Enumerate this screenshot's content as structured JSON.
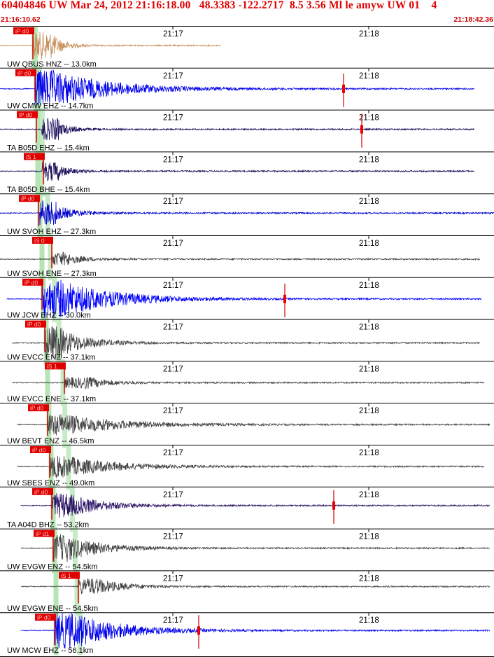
{
  "header": {
    "title": "60404846 UW Mar 24, 2012 21:16:18.00   48.3383 -122.2717  8.5 3.56 Ml le amyw UW 01    4",
    "start_time": "21:16:10.62",
    "end_time": "21:18:42.36"
  },
  "chart_data": {
    "type": "line",
    "title": "60404846 UW Mar 24, 2012 21:16:18.00   48.3383 -122.2717  8.5 3.56 Ml le amyw UW 01    4",
    "time_range": [
      "21:16:10.62",
      "21:18:42.36"
    ],
    "minute_ticks": [
      "21:17",
      "21:18"
    ],
    "grid": false,
    "traces": [
      {
        "label": "UW QBUS HNZ -- 13.0km",
        "pick": "iP d0",
        "color": "#c8905a",
        "has_s": false
      },
      {
        "label": "UW CMW EHZ -- 14.7km",
        "pick": "iP d0",
        "color": "#0000ee",
        "has_s": false
      },
      {
        "label": "TA B05D EHZ -- 15.4km",
        "pick": "iP d0",
        "color": "#1a0a5a",
        "has_s": false
      },
      {
        "label": "TA B05D BHE -- 15.4km",
        "pick": "iS 1",
        "color": "#1a0a5a",
        "has_s": true
      },
      {
        "label": "UW SVOH EHZ -- 27.3km",
        "pick": "iP d0",
        "color": "#0000cc",
        "has_s": false
      },
      {
        "label": "UW SVOH ENE -- 27.3km",
        "pick": "iS 0",
        "color": "#444444",
        "has_s": true
      },
      {
        "label": "UW JCW EHZ -- 30.0km",
        "pick": "iP d0",
        "color": "#0000ff",
        "has_s": false
      },
      {
        "label": "UW EVCC ENZ -- 37.1km",
        "pick": "iP d0",
        "color": "#444444",
        "has_s": false
      },
      {
        "label": "UW EVCC ENE -- 37.1km",
        "pick": "iS 1",
        "color": "#444444",
        "has_s": true
      },
      {
        "label": "UW BEVT ENZ -- 46.5km",
        "pick": "iP d0",
        "color": "#444444",
        "has_s": false
      },
      {
        "label": "UW SBES ENZ -- 49.0km",
        "pick": "iP d0",
        "color": "#444444",
        "has_s": false
      },
      {
        "label": "TA A04D BHZ -- 53.2km",
        "pick": "iP d0",
        "color": "#2a1466",
        "has_s": false
      },
      {
        "label": "UW EVGW ENZ -- 54.5km",
        "pick": "iP d1",
        "color": "#444444",
        "has_s": false
      },
      {
        "label": "UW EVGW ENE -- 54.5km",
        "pick": "iS 1",
        "color": "#444444",
        "has_s": true
      },
      {
        "label": "UW MCW EHZ -- 56.1km",
        "pick": "iP d0",
        "color": "#0000ee",
        "has_s": false
      }
    ]
  }
}
